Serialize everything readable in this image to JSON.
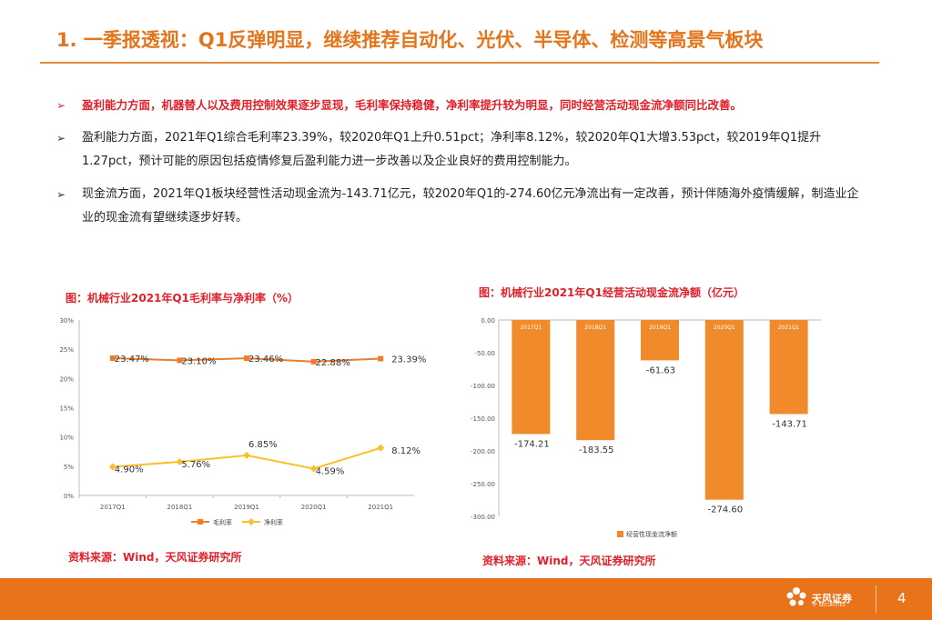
{
  "title": "1. 一季报透视：Q1反弹明显，继续推荐自动化、光伏、半导体、检测等高景气板块",
  "bullets": [
    "盈利能力方面，机器替人以及费用控制效果逐步显现，毛利率保持稳健，净利率提升较为明显，同时经营活动现金流净额同比改善。",
    "盈利能力方面，2021年Q1综合毛利率23.39%，较2020年Q1上升0.51pct；净利率8.12%，较2020年Q1大增3.53pct，较2019年Q1提升1.27pct，预计可能的原因包括疫情修复后盈利能力进一步改善以及企业良好的费用控制能力。",
    "现金流方面，2021年Q1板块经营性活动现金流为-143.71亿元，较2020年Q1的-274.60亿元净流出有一定改善，预计伴随海外疫情缓解，制造业企业的现金流有望继续逐步好转。"
  ],
  "bullet_marker": "➢",
  "chart_left_title": "图：机械行业2021年Q1毛利率与净利率（%）",
  "chart_right_title": "图：机械行业2021年Q1经营活动现金流净额（亿元）",
  "source_left": "资料来源：Wind，天风证券研究所",
  "source_right": "资料来源：Wind，天风证券研究所",
  "footer": {
    "brand": "天风证券",
    "brand_sub": "TF SECURITIES",
    "page_number": "4"
  },
  "colors": {
    "accent": "#e3761d",
    "highlight_red": "#e0202b",
    "gross_line": "#ee7d2a",
    "net_line": "#fbbf2c",
    "bar": "#f08a2a"
  },
  "chart_data": [
    {
      "type": "line",
      "title": "图：机械行业2021年Q1毛利率与净利率（%）",
      "categories": [
        "2017Q1",
        "2018Q1",
        "2019Q1",
        "2020Q1",
        "2021Q1"
      ],
      "y_ticks": [
        "0%",
        "5%",
        "10%",
        "15%",
        "20%",
        "25%",
        "30%"
      ],
      "ylim": [
        0,
        30
      ],
      "grid": false,
      "legend": "bottom",
      "series": [
        {
          "name": "毛利率",
          "values": [
            23.47,
            23.1,
            23.46,
            22.88,
            23.39
          ],
          "labels": [
            "23.47%",
            "23.10%",
            "23.46%",
            "22.88%",
            "23.39%"
          ]
        },
        {
          "name": "净利率",
          "values": [
            4.9,
            5.76,
            6.85,
            4.59,
            8.12
          ],
          "labels": [
            "4.90%",
            "5.76%",
            "6.85%",
            "4.59%",
            "8.12%"
          ]
        }
      ]
    },
    {
      "type": "bar",
      "title": "图：机械行业2021年Q1经营活动现金流净额（亿元）",
      "categories": [
        "2017Q1",
        "2018Q1",
        "2019Q1",
        "2020Q1",
        "2021Q1"
      ],
      "y_ticks": [
        "0.00",
        "-50.00",
        "-100.00",
        "-150.00",
        "-200.00",
        "-250.00",
        "-300.00"
      ],
      "ylim": [
        -300,
        0
      ],
      "grid": false,
      "legend": "bottom",
      "series": [
        {
          "name": "经营性现金流净额",
          "values": [
            -174.21,
            -183.55,
            -61.63,
            -274.6,
            -143.71
          ],
          "labels": [
            "-174.21",
            "-183.55",
            "-61.63",
            "-274.60",
            "-143.71"
          ]
        }
      ]
    }
  ]
}
